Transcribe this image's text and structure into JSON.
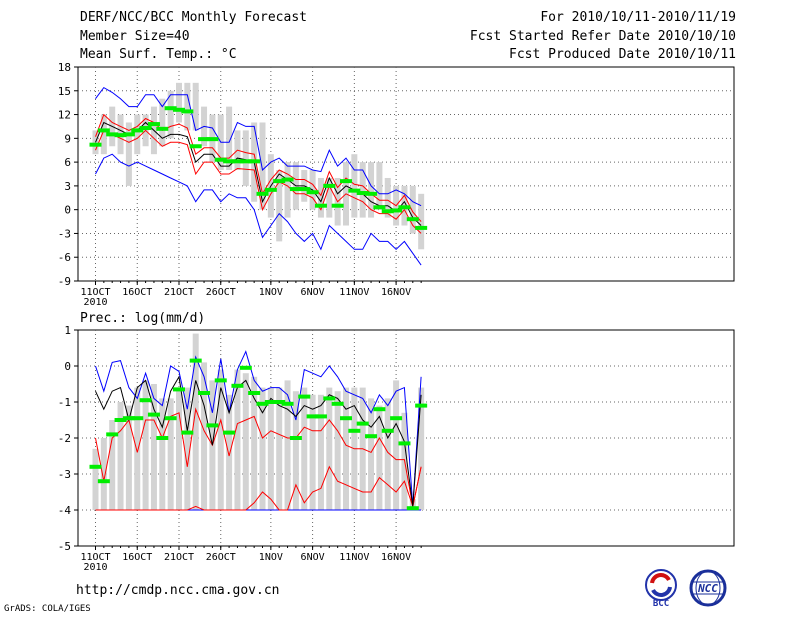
{
  "header": {
    "title": "DERF/NCC/BCC Monthly Forecast",
    "member_size": "Member Size=40",
    "variable": "Mean Surf. Temp.: °C",
    "fcst_period": "For 2010/10/11-2010/11/19",
    "fcst_started": "Fcst Started Refer Date 2010/10/10",
    "fcst_produced": "Fcst Produced Date 2010/10/11"
  },
  "footer": {
    "url": "http://cmdp.ncc.cma.gov.cn",
    "grads": "GrADS: COLA/IGES",
    "logo_left_text": "BCC",
    "logo_right_text": "NCC"
  },
  "colors": {
    "box": "#d3d3d3",
    "mean": "#00ee00",
    "outer": "#0000ff",
    "inner": "#ff0000",
    "median": "#000000"
  },
  "chart_data": [
    {
      "type": "box-and-line",
      "name": "temperature",
      "title": "",
      "xlabel": "",
      "ylabel": "Mean Surf. Temp.: °C",
      "days": 40,
      "xticks": [
        {
          "day": 1,
          "label": "11OCT"
        },
        {
          "day": 6,
          "label": "16OCT"
        },
        {
          "day": 11,
          "label": "21OCT"
        },
        {
          "day": 16,
          "label": "26OCT"
        },
        {
          "day": 22,
          "label": "1NOV"
        },
        {
          "day": 27,
          "label": "6NOV"
        },
        {
          "day": 32,
          "label": "11NOV"
        },
        {
          "day": 37,
          "label": "16NOV"
        }
      ],
      "year_label": "2010",
      "ylim": [
        -9,
        18
      ],
      "yticks": [
        -9,
        -6,
        -3,
        0,
        3,
        6,
        9,
        12,
        15,
        18
      ],
      "box_low": [
        7,
        7,
        8,
        7,
        3,
        7,
        8,
        7,
        8,
        9,
        11,
        10,
        10,
        8,
        6,
        5,
        5,
        5,
        3,
        1,
        0,
        -1,
        -4,
        -1,
        0,
        1,
        0,
        -1,
        -1,
        -2,
        -2,
        -1,
        -1,
        -1,
        0,
        -1,
        -2,
        -2,
        -3,
        -5
      ],
      "box_high": [
        10,
        12,
        13,
        12,
        11,
        12,
        12,
        13,
        14,
        15,
        16,
        16,
        16,
        13,
        12,
        12,
        13,
        10,
        10,
        11,
        11,
        7,
        5,
        6,
        6,
        5,
        5,
        4,
        4,
        4,
        6,
        7,
        6,
        6,
        6,
        4,
        3,
        3,
        3,
        2
      ],
      "mean": [
        8.2,
        10,
        9.5,
        9.4,
        9.5,
        10,
        10.3,
        10.8,
        10.2,
        12.8,
        12.6,
        12.4,
        8,
        8.9,
        8.9,
        6.3,
        6.1,
        6.1,
        6.1,
        6.1,
        2,
        2.5,
        3.6,
        3.8,
        2.6,
        2.6,
        2.2,
        0.5,
        3,
        0.5,
        3.6,
        2.4,
        2.1,
        2,
        0.3,
        -0.2,
        -0.1,
        0.3,
        -1.2,
        -2.3
      ],
      "median": [
        8.5,
        11,
        10.5,
        10,
        9.5,
        10,
        11,
        10,
        9,
        9.5,
        9.5,
        9.2,
        6,
        7,
        7,
        5.5,
        5.5,
        6.5,
        6.3,
        6,
        1,
        3,
        4.5,
        3.8,
        3,
        3,
        2.5,
        1,
        4,
        2,
        3,
        2.5,
        2,
        1,
        0.5,
        0.5,
        -0.2,
        1,
        -1,
        -2
      ],
      "inner_upper": [
        9.2,
        12,
        11,
        10.5,
        10,
        10.5,
        11.5,
        11,
        10,
        10.5,
        10.8,
        10.3,
        7,
        7.8,
        7.8,
        6.5,
        6.5,
        7.5,
        7.2,
        7,
        2,
        3.8,
        5,
        4.5,
        3.8,
        3.8,
        3.2,
        1.8,
        4.8,
        2.8,
        4,
        3.2,
        3,
        2,
        1.2,
        1.2,
        0.5,
        1.8,
        -0.3,
        -1.5
      ],
      "inner_lower": [
        7.5,
        10,
        9.5,
        9,
        8.5,
        9,
        10,
        9,
        8,
        8.5,
        8.5,
        8.2,
        4.5,
        6,
        6,
        4.5,
        4.5,
        5.2,
        5.1,
        5,
        0,
        2,
        3.5,
        3,
        2,
        2,
        1.5,
        0,
        3,
        1,
        2,
        1.5,
        1,
        0,
        -0.5,
        -0.5,
        -1.2,
        0,
        -2,
        -3
      ],
      "outer_upper": [
        14,
        15.4,
        14.8,
        14,
        13,
        13,
        14.5,
        14.5,
        13,
        14.5,
        14.5,
        14.5,
        10,
        10.5,
        10.3,
        8.5,
        8.5,
        11,
        10.5,
        10.5,
        5,
        6,
        6.5,
        5.5,
        5.5,
        5.5,
        5,
        4.8,
        7.5,
        5.5,
        6.5,
        5,
        5,
        3,
        2,
        2,
        2.5,
        2,
        1,
        0.5
      ],
      "outer_lower": [
        4.5,
        6.5,
        7,
        6,
        5.5,
        6,
        5.5,
        5,
        4.5,
        4,
        3.5,
        3,
        1,
        2.5,
        2.5,
        1,
        2,
        1.5,
        1.5,
        0,
        -3.5,
        -2,
        -0.5,
        -1.5,
        -3,
        -4,
        -3,
        -5,
        -2,
        -3,
        -4,
        -5,
        -5,
        -3,
        -4,
        -4,
        -5,
        -4,
        -5.5,
        -7
      ]
    },
    {
      "type": "box-and-line",
      "name": "precipitation",
      "title": "Prec.: log(mm/d)",
      "xlabel": "",
      "ylabel": "",
      "days": 40,
      "xticks": [
        {
          "day": 1,
          "label": "11OCT"
        },
        {
          "day": 6,
          "label": "16OCT"
        },
        {
          "day": 11,
          "label": "21OCT"
        },
        {
          "day": 16,
          "label": "26OCT"
        },
        {
          "day": 22,
          "label": "1NOV"
        },
        {
          "day": 27,
          "label": "6NOV"
        },
        {
          "day": 32,
          "label": "11NOV"
        },
        {
          "day": 37,
          "label": "16NOV"
        }
      ],
      "year_label": "2010",
      "ylim": [
        -5,
        1
      ],
      "yticks": [
        -5,
        -4,
        -3,
        -2,
        -1,
        0,
        1
      ],
      "box_low": [
        -4,
        -4,
        -4,
        -4,
        -4,
        -4,
        -4,
        -4,
        -4,
        -4,
        -4,
        -4,
        -4,
        -4,
        -4,
        -4,
        -4,
        -4,
        -4,
        -4,
        -4,
        -4,
        -4,
        -4,
        -4,
        -4,
        -4,
        -4,
        -4,
        -4,
        -4,
        -4,
        -4,
        -4,
        -4,
        -4,
        -4,
        -4,
        -4,
        -4
      ],
      "box_high": [
        -2.3,
        -2,
        -1.5,
        -1,
        -1.1,
        -0.6,
        -0.4,
        -0.5,
        -0.9,
        -0.9,
        -0.6,
        -0.6,
        0.9,
        0.1,
        -0.4,
        -0.1,
        -0.8,
        -0.1,
        -0.2,
        -0.3,
        -0.6,
        -0.6,
        -0.6,
        -0.4,
        -0.7,
        -0.6,
        -0.8,
        -0.8,
        -0.6,
        -0.7,
        -0.6,
        -0.6,
        -0.6,
        -0.9,
        -1.1,
        -0.9,
        -0.4,
        -1.3,
        -3.7,
        -0.6
      ],
      "mean": [
        -2.8,
        -3.2,
        -1.9,
        -1.5,
        -1.45,
        -1.45,
        -0.95,
        -1.35,
        -2,
        -1.45,
        -0.65,
        -1.85,
        0.15,
        -0.75,
        -1.65,
        -0.4,
        -1.85,
        -0.55,
        -0.05,
        -0.75,
        -1.05,
        -1,
        -1,
        -1.05,
        -2.0,
        -0.85,
        -1.4,
        -1.4,
        -0.9,
        -1.05,
        -1.45,
        -1.8,
        -1.6,
        -1.95,
        -1.2,
        -1.8,
        -1.45,
        -2.15,
        -3.95,
        -1.1
      ],
      "median": [
        -0.7,
        -1.2,
        -0.7,
        -0.6,
        -1.5,
        -0.6,
        -0.4,
        -1.2,
        -1.7,
        -0.7,
        -0.3,
        -1.8,
        -0.4,
        -1.1,
        -2.2,
        -0.6,
        -1.3,
        -0.6,
        -0.4,
        -0.9,
        -1.3,
        -0.9,
        -1.1,
        -1.2,
        -1.4,
        -1.1,
        -1.2,
        -1.1,
        -0.8,
        -0.9,
        -1.2,
        -1.1,
        -1.5,
        -1.7,
        -1.4,
        -2.0,
        -1.6,
        -2.1,
        -3.9,
        -0.8
      ],
      "inner_upper": [
        -2.0,
        -3.2,
        -2.0,
        -1.8,
        -1.5,
        -2.4,
        -1.5,
        -1.5,
        -2.0,
        -1.4,
        -1.3,
        -2.8,
        -1.2,
        -1.8,
        -2.2,
        -1.5,
        -2.5,
        -1.6,
        -1.5,
        -1.4,
        -2.0,
        -1.8,
        -1.9,
        -2.0,
        -2.0,
        -1.7,
        -1.8,
        -1.8,
        -1.5,
        -1.8,
        -2.2,
        -2.3,
        -2.3,
        -2.4,
        -2.0,
        -2.4,
        -2.6,
        -2.6,
        -3.9,
        -2.8
      ],
      "inner_lower": [
        -4,
        -4,
        -4,
        -4,
        -4,
        -4,
        -4,
        -4,
        -4,
        -4,
        -4,
        -4,
        -3.9,
        -4,
        -4,
        -4,
        -4,
        -4,
        -4,
        -3.8,
        -3.5,
        -3.7,
        -4,
        -4,
        -3.3,
        -3.8,
        -3.5,
        -3.4,
        -2.8,
        -3.2,
        -3.3,
        -3.4,
        -3.5,
        -3.5,
        -3.1,
        -3.3,
        -3.5,
        -3.2,
        -3.9,
        -2.8
      ],
      "outer_upper": [
        0,
        -0.7,
        0.1,
        0.15,
        -0.6,
        -0.9,
        -0.2,
        -0.9,
        -1.1,
        0,
        -0.15,
        -1.2,
        0.25,
        -0.3,
        -1.3,
        0.2,
        -1.3,
        -0.1,
        0.4,
        -0.4,
        -0.7,
        -0.6,
        -0.6,
        -0.8,
        -1.5,
        -0.1,
        -0.2,
        -0.3,
        0,
        -0.3,
        -0.7,
        -0.8,
        -0.9,
        -1.3,
        -0.8,
        -1.1,
        -0.7,
        -0.6,
        -3.9,
        -0.3
      ],
      "outer_lower": [
        -4,
        -4,
        -4,
        -4,
        -4,
        -4,
        -4,
        -4,
        -4,
        -4,
        -4,
        -4,
        -4,
        -4,
        -4,
        -4,
        -4,
        -4,
        -4,
        -4,
        -4,
        -4,
        -4,
        -4,
        -4,
        -4,
        -4,
        -4,
        -4,
        -4,
        -4,
        -4,
        -4,
        -4,
        -4,
        -4,
        -4,
        -4,
        -4,
        -4
      ]
    }
  ]
}
